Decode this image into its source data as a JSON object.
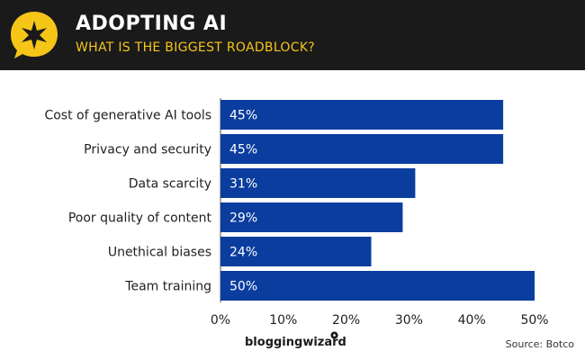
{
  "header": {
    "title": "ADOPTING AI",
    "subtitle": "WHAT IS THE BIGGEST ROADBLOCK?",
    "badge_icon": "star-speech-bubble-icon",
    "badge_color": "#f5c518",
    "background_color": "#1a1a1a"
  },
  "chart_data": {
    "type": "bar",
    "orientation": "horizontal",
    "categories": [
      "Cost of generative AI tools",
      "Privacy and security",
      "Data scarcity",
      "Poor quality of content",
      "Unethical biases",
      "Team training"
    ],
    "values": [
      45,
      45,
      31,
      29,
      24,
      50
    ],
    "value_labels": [
      "45%",
      "45%",
      "31%",
      "29%",
      "24%",
      "50%"
    ],
    "xlim": [
      0,
      50
    ],
    "xticks": [
      0,
      10,
      20,
      30,
      40,
      50
    ],
    "xtick_labels": [
      "0%",
      "10%",
      "20%",
      "30%",
      "40%",
      "50%"
    ],
    "bar_color": "#0a3d9e",
    "grid": false,
    "legend": "none"
  },
  "footer": {
    "brand": "bloggingwizard",
    "source": "Source: Botco"
  }
}
